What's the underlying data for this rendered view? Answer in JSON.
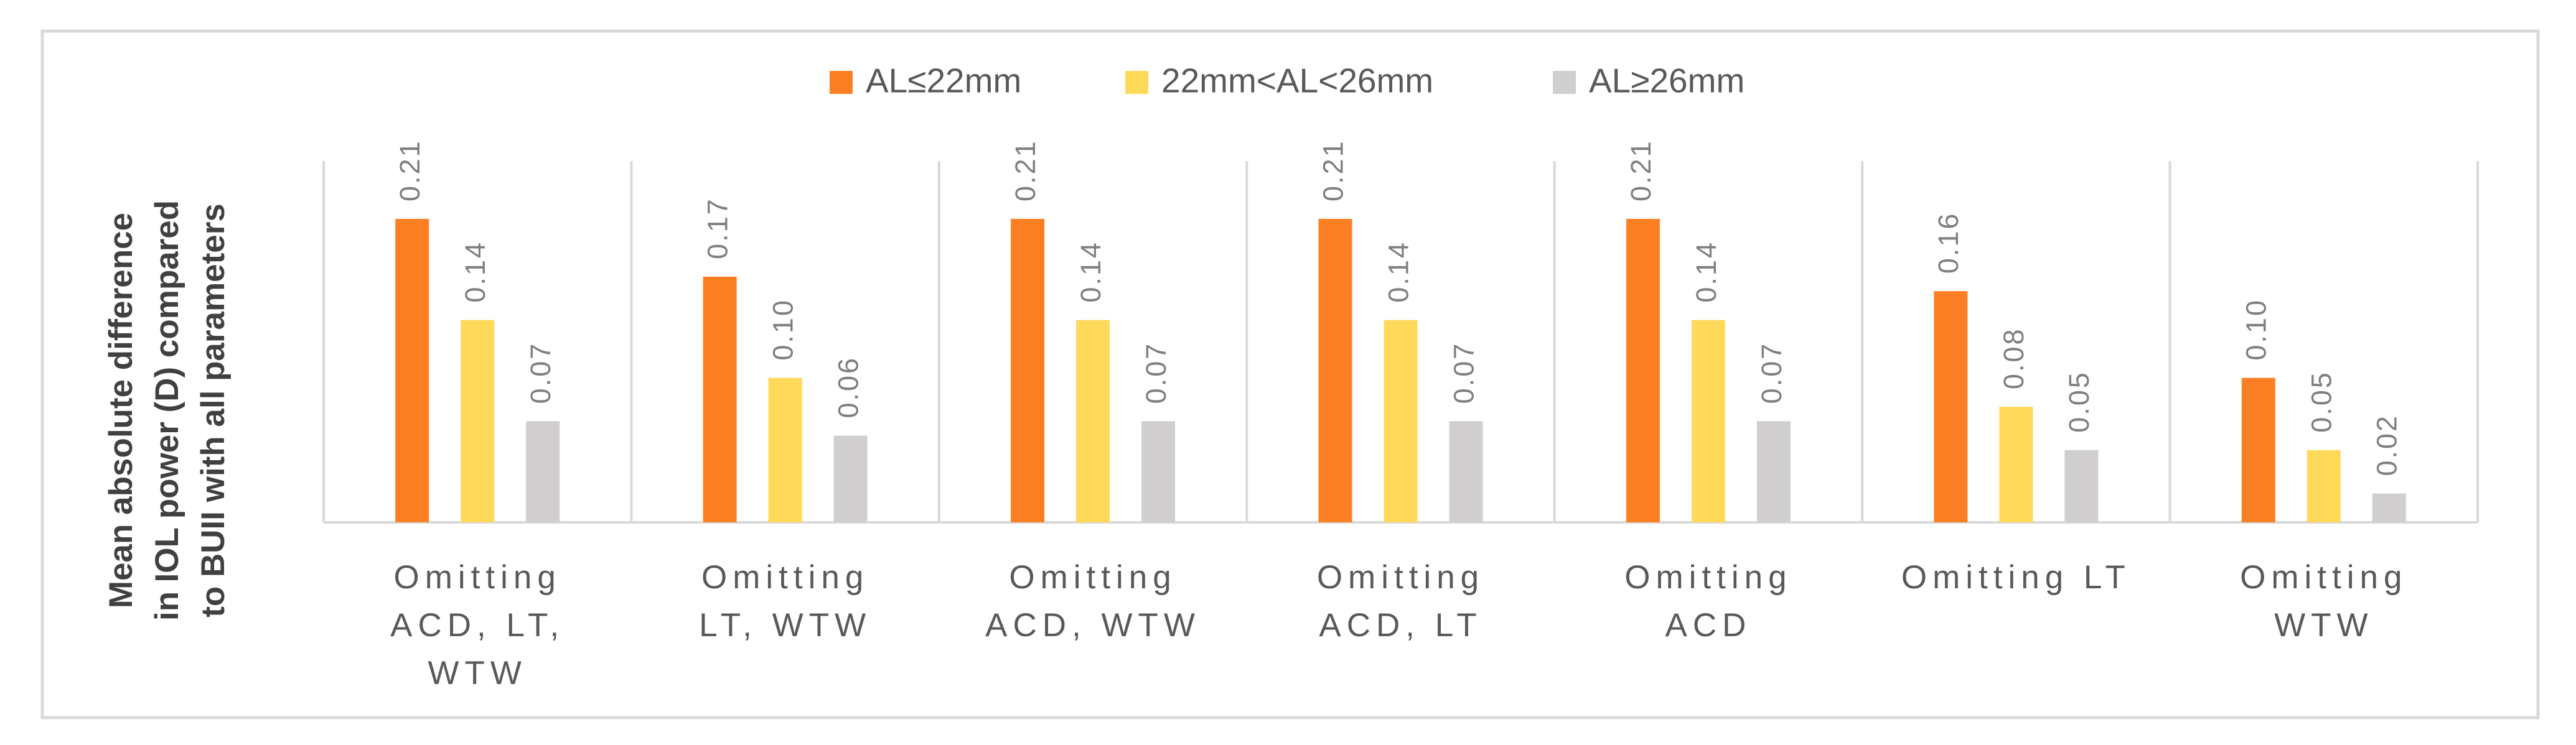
{
  "chart_data": {
    "type": "bar",
    "ylabel": [
      "Mean absolute difference",
      "in IOL power (D) compared",
      "to BUII with all parameters"
    ],
    "categories": [
      "Omitting ACD, LT, WTW",
      "Omitting LT, WTW",
      "Omitting ACD, WTW",
      "Omitting ACD, LT",
      "Omitting ACD",
      "Omitting LT",
      "Omitting WTW"
    ],
    "series": [
      {
        "name": "AL≤22mm",
        "color": "#fd7f23",
        "values": [
          0.21,
          0.17,
          0.21,
          0.21,
          0.21,
          0.16,
          0.1
        ],
        "value_labels": [
          "0.21",
          "0.17",
          "0.21",
          "0.21",
          "0.21",
          "0.16",
          "0.10"
        ]
      },
      {
        "name": "22mm<AL<26mm",
        "color": "#ffd95a",
        "values": [
          0.14,
          0.1,
          0.14,
          0.14,
          0.14,
          0.08,
          0.05
        ],
        "value_labels": [
          "0.14",
          "0.10",
          "0.14",
          "0.14",
          "0.14",
          "0.08",
          "0.05"
        ]
      },
      {
        "name": "AL≥26mm",
        "color": "#d0cece",
        "values": [
          0.07,
          0.06,
          0.07,
          0.07,
          0.07,
          0.05,
          0.02
        ],
        "value_labels": [
          "0.07",
          "0.06",
          "0.07",
          "0.07",
          "0.07",
          "0.05",
          "0.02"
        ]
      }
    ],
    "ylim": [
      0,
      0.25
    ],
    "legend": "top"
  }
}
